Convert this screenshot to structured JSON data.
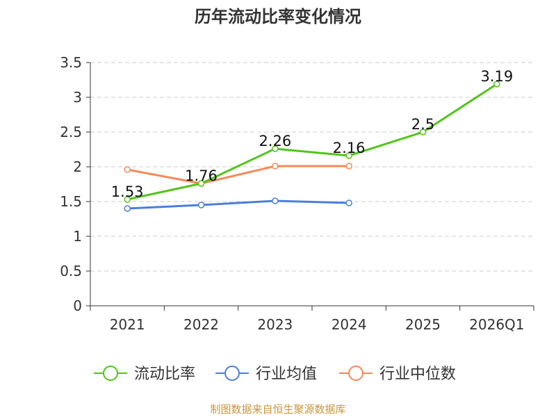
{
  "chart_data": {
    "type": "line",
    "title": "历年流动比率变化情况",
    "xlabel": "",
    "ylabel": "",
    "categories": [
      "2021",
      "2022",
      "2023",
      "2024",
      "2025",
      "2026Q1"
    ],
    "ylim": [
      0,
      3.5
    ],
    "yticks": [
      "0",
      "0.5",
      "1",
      "1.5",
      "2",
      "2.5",
      "3",
      "3.5"
    ],
    "ytick_values": [
      0,
      0.5,
      1,
      1.5,
      2,
      2.5,
      3,
      3.5
    ],
    "grid": true,
    "legend_position": "bottom",
    "series": [
      {
        "name": "流动比率",
        "color": "#52c41a",
        "values": [
          1.53,
          1.76,
          2.26,
          2.16,
          2.5,
          3.19
        ],
        "labels": [
          "1.53",
          "1.76",
          "2.26",
          "2.16",
          "2.5",
          "3.19"
        ]
      },
      {
        "name": "行业均值",
        "color": "#4a7fdb",
        "values": [
          1.4,
          1.45,
          1.51,
          1.48,
          null,
          null
        ]
      },
      {
        "name": "行业中位数",
        "color": "#f5895a",
        "values": [
          1.96,
          1.76,
          2.01,
          2.01,
          null,
          null
        ]
      }
    ]
  },
  "footer": {
    "source": "制图数据来自恒生聚源数据库"
  }
}
